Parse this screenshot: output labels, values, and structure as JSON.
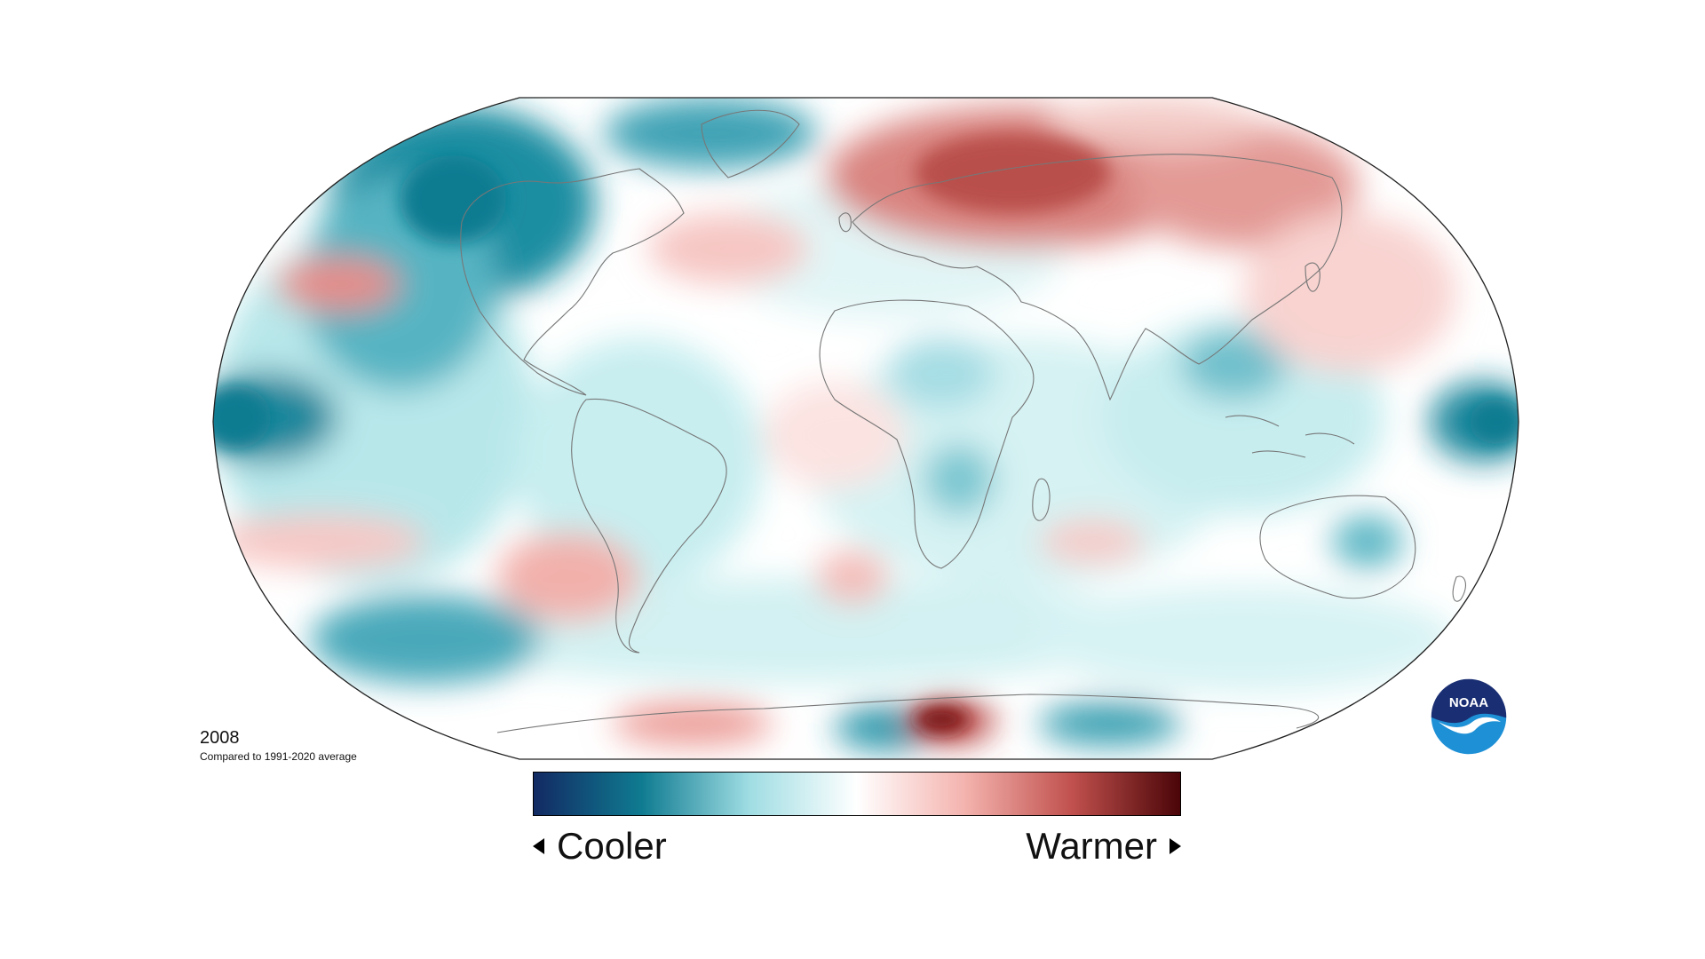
{
  "map": {
    "projection": "robinson",
    "colors": {
      "cool_dark": "#122a63",
      "cool_mid": "#0f7b91",
      "cool_light": "#9fdde3",
      "neutral": "#ffffff",
      "warm_light": "#f4b3ae",
      "warm_mid": "#c0504d",
      "warm_dark": "#4b0508",
      "coastline": "#777777",
      "outline": "#222222"
    }
  },
  "labels": {
    "year": "2008",
    "baseline": "Compared to 1991-2020 average"
  },
  "legend": {
    "cooler": "Cooler",
    "warmer": "Warmer",
    "gradient": [
      "#122a63",
      "#0f7b91",
      "#9fdde3",
      "#ffffff",
      "#f4b3ae",
      "#c0504d",
      "#4b0508"
    ]
  },
  "logo": {
    "text": "NOAA",
    "colors": {
      "top": "#1a2f73",
      "bottom": "#1e90d6",
      "bird": "#ffffff"
    }
  }
}
